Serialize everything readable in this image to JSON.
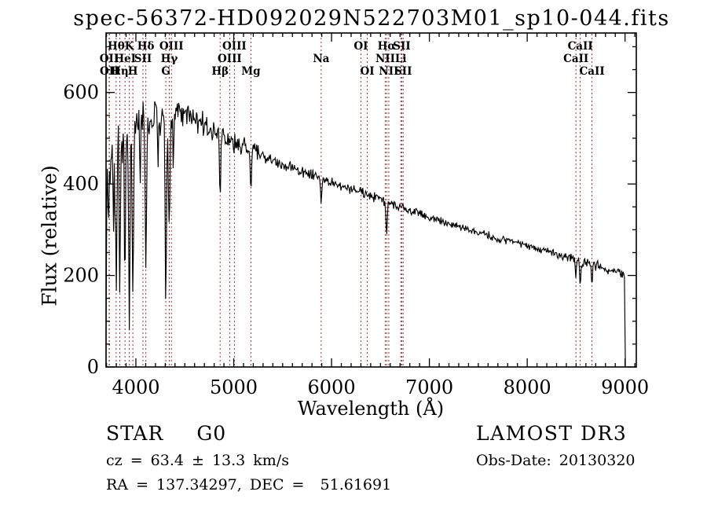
{
  "title": "spec-56372-HD092029N522703M01_sp10-044.fits",
  "colors": {
    "background": "#ffffff",
    "spectrum": "#000000",
    "frame": "#000000",
    "marker_line": "#993333",
    "text": "#000000"
  },
  "annotations": {
    "object_class": "STAR",
    "subclass": "G0",
    "cz_line": "cz = 63.4 ± 13.3 km/s",
    "radec_line": "RA = 137.34297, DEC =  51.61691",
    "survey": "LAMOST DR3",
    "obs_date": "Obs-Date: 20130320"
  },
  "chart_data": {
    "type": "line",
    "title": "spec-56372-HD092029N522703M01_sp10-044.fits",
    "xlabel": "Wavelength (Å)",
    "ylabel": "Flux (relative)",
    "xlim": [
      3695,
      9115
    ],
    "ylim": [
      0,
      730
    ],
    "grid": false,
    "x_major_ticks": [
      4000,
      5000,
      6000,
      7000,
      8000,
      9000
    ],
    "x_minor_step": 100,
    "y_major_ticks": [
      0,
      200,
      400,
      600
    ],
    "y_minor_step": 50,
    "spectrum_range": [
      3695,
      9000
    ],
    "sample_step": 7,
    "noise_seed": 20130320,
    "line_markers": [
      {
        "label": "OII",
        "wavelength": 3727,
        "row": 2
      },
      {
        "label": "OII",
        "wavelength": 3729,
        "row": 3
      },
      {
        "label": "Hθ",
        "wavelength": 3798,
        "row": 1
      },
      {
        "label": "Hη",
        "wavelength": 3835,
        "row": 3
      },
      {
        "label": "HeI",
        "wavelength": 3889,
        "row": 2
      },
      {
        "label": "K",
        "wavelength": 3933,
        "row": 1
      },
      {
        "label": "H",
        "wavelength": 3969,
        "row": 3
      },
      {
        "label": "SII",
        "wavelength": 4072,
        "row": 2
      },
      {
        "label": "Hδ",
        "wavelength": 4102,
        "row": 1
      },
      {
        "label": "G",
        "wavelength": 4306,
        "row": 3
      },
      {
        "label": "Hγ",
        "wavelength": 4341,
        "row": 2
      },
      {
        "label": "OIII",
        "wavelength": 4363,
        "row": 1
      },
      {
        "label": "Hβ",
        "wavelength": 4861,
        "row": 3
      },
      {
        "label": "OIII",
        "wavelength": 4959,
        "row": 2
      },
      {
        "label": "OIII",
        "wavelength": 5007,
        "row": 1
      },
      {
        "label": "Mg",
        "wavelength": 5176,
        "row": 3
      },
      {
        "label": "Na",
        "wavelength": 5894,
        "row": 2
      },
      {
        "label": "OI",
        "wavelength": 6300,
        "row": 1
      },
      {
        "label": "OI",
        "wavelength": 6365,
        "row": 3
      },
      {
        "label": "NII",
        "wavelength": 6549,
        "row": 2
      },
      {
        "label": "Hα",
        "wavelength": 6563,
        "row": 1
      },
      {
        "label": "NII",
        "wavelength": 6585,
        "row": 3
      },
      {
        "label": "Li",
        "wavelength": 6708,
        "row": 2
      },
      {
        "label": "SII",
        "wavelength": 6718,
        "row": 1
      },
      {
        "label": "SII",
        "wavelength": 6732,
        "row": 3
      },
      {
        "label": "CaII",
        "wavelength": 8498,
        "row": 2
      },
      {
        "label": "CaII",
        "wavelength": 8542,
        "row": 1
      },
      {
        "label": "CaII",
        "wavelength": 8662,
        "row": 3
      }
    ],
    "continuum": [
      [
        3695,
        80
      ],
      [
        3700,
        350
      ],
      [
        3720,
        440
      ],
      [
        3760,
        465
      ],
      [
        3800,
        485
      ],
      [
        3850,
        500
      ],
      [
        3900,
        512
      ],
      [
        3950,
        522
      ],
      [
        4000,
        532
      ],
      [
        4100,
        542
      ],
      [
        4200,
        548
      ],
      [
        4300,
        552
      ],
      [
        4400,
        556
      ],
      [
        4500,
        552
      ],
      [
        4600,
        542
      ],
      [
        4700,
        528
      ],
      [
        4800,
        512
      ],
      [
        4900,
        500
      ],
      [
        5000,
        490
      ],
      [
        5100,
        481
      ],
      [
        5200,
        471
      ],
      [
        5300,
        461
      ],
      [
        5400,
        452
      ],
      [
        5500,
        444
      ],
      [
        5600,
        436
      ],
      [
        5700,
        428
      ],
      [
        5800,
        420
      ],
      [
        5900,
        411
      ],
      [
        6000,
        403
      ],
      [
        6100,
        396
      ],
      [
        6200,
        389
      ],
      [
        6300,
        382
      ],
      [
        6400,
        374
      ],
      [
        6500,
        366
      ],
      [
        6600,
        358
      ],
      [
        6700,
        350
      ],
      [
        6800,
        342
      ],
      [
        6900,
        334
      ],
      [
        7000,
        327
      ],
      [
        7200,
        313
      ],
      [
        7400,
        300
      ],
      [
        7600,
        288
      ],
      [
        7800,
        276
      ],
      [
        8000,
        264
      ],
      [
        8200,
        252
      ],
      [
        8400,
        240
      ],
      [
        8600,
        228
      ],
      [
        8800,
        216
      ],
      [
        8950,
        206
      ],
      [
        9000,
        200
      ]
    ],
    "noise_segments": [
      [
        3695,
        3800,
        105
      ],
      [
        3800,
        4000,
        72
      ],
      [
        4000,
        4350,
        48
      ],
      [
        4350,
        4700,
        36
      ],
      [
        4700,
        5300,
        27
      ],
      [
        5300,
        5900,
        17
      ],
      [
        5900,
        6700,
        13
      ],
      [
        6700,
        7600,
        10
      ],
      [
        7600,
        8500,
        11
      ],
      [
        8500,
        9000,
        13
      ]
    ],
    "absorption_lines": [
      [
        3727,
        80,
        5
      ],
      [
        3770,
        180,
        6
      ],
      [
        3798,
        300,
        6
      ],
      [
        3835,
        330,
        6
      ],
      [
        3889,
        340,
        6
      ],
      [
        3933,
        440,
        7
      ],
      [
        3969,
        380,
        7
      ],
      [
        4045,
        120,
        5
      ],
      [
        4102,
        330,
        7
      ],
      [
        4226,
        140,
        5
      ],
      [
        4306,
        410,
        7
      ],
      [
        4341,
        260,
        7
      ],
      [
        4383,
        120,
        5
      ],
      [
        4861,
        140,
        6
      ],
      [
        5176,
        60,
        8
      ],
      [
        5894,
        50,
        6
      ],
      [
        6563,
        78,
        6
      ],
      [
        8498,
        40,
        5
      ],
      [
        8542,
        55,
        6
      ],
      [
        8662,
        45,
        6
      ]
    ]
  }
}
